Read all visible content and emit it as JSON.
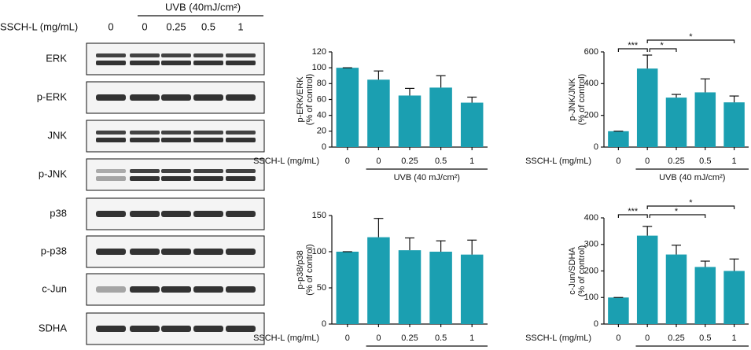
{
  "blot": {
    "header": "UVB (40mJ/cm²)",
    "dose_label": "SSCH-L (mg/mL)",
    "lanes": [
      "0",
      "0",
      "0.25",
      "0.5",
      "1"
    ],
    "rows": [
      "ERK",
      "p-ERK",
      "JNK",
      "p-JNK",
      "p38",
      "p-p38",
      "c-Jun",
      "SDHA"
    ]
  },
  "chart_data": [
    {
      "type": "bar",
      "ylabel": [
        "p-ERK/ERK",
        "(% of control)"
      ],
      "x_row_label": "SSCH-L (mg/mL)",
      "group_label": "UVB (40 mJ/cm²)",
      "categories": [
        "0",
        "0",
        "0.25",
        "0.5",
        "1"
      ],
      "values": [
        100,
        85,
        65,
        75,
        56
      ],
      "errors": [
        0,
        11,
        9,
        15,
        7
      ],
      "color": "#1b9fb1",
      "ylim": [
        0,
        120
      ],
      "yticks": [
        0,
        20,
        40,
        60,
        80,
        100,
        120
      ],
      "sig": []
    },
    {
      "type": "bar",
      "ylabel": [
        "p-JNK/JNK",
        "(% of control)"
      ],
      "x_row_label": "SSCH-L (mg/mL)",
      "group_label": "UVB (40 mJ/cm²)",
      "categories": [
        "0",
        "0",
        "0.25",
        "0.5",
        "1"
      ],
      "values": [
        100,
        495,
        312,
        345,
        282
      ],
      "errors": [
        0,
        85,
        20,
        85,
        40
      ],
      "color": "#1b9fb1",
      "ylim": [
        0,
        600
      ],
      "yticks": [
        0,
        200,
        400,
        600
      ],
      "sig": [
        {
          "pair": [
            0,
            1
          ],
          "label": "***"
        },
        {
          "pair": [
            1,
            2
          ],
          "label": "*"
        },
        {
          "pair": [
            1,
            4
          ],
          "label": "*"
        }
      ]
    },
    {
      "type": "bar",
      "ylabel": [
        "p-p38/p38",
        "(% of control)"
      ],
      "x_row_label": "SSCH-L (mg/mL)",
      "group_label": "UVB (40 mJ/cm²)",
      "categories": [
        "0",
        "0",
        "0.25",
        "0.5",
        "1"
      ],
      "values": [
        100,
        120,
        102,
        100,
        96
      ],
      "errors": [
        0,
        26,
        17,
        15,
        20
      ],
      "color": "#1b9fb1",
      "ylim": [
        0,
        150
      ],
      "yticks": [
        0,
        50,
        100,
        150
      ],
      "sig": []
    },
    {
      "type": "bar",
      "ylabel": [
        "c-Jun/SDHA",
        "(% of control)"
      ],
      "x_row_label": "SSCH-L (mg/mL)",
      "group_label": "UVB (40 mJ/cm²)",
      "categories": [
        "0",
        "0",
        "0.25",
        "0.5",
        "1"
      ],
      "values": [
        100,
        333,
        262,
        215,
        200
      ],
      "errors": [
        0,
        35,
        35,
        22,
        45
      ],
      "color": "#1b9fb1",
      "ylim": [
        0,
        400
      ],
      "yticks": [
        0,
        100,
        200,
        300,
        400
      ],
      "sig": [
        {
          "pair": [
            0,
            1
          ],
          "label": "***"
        },
        {
          "pair": [
            1,
            3
          ],
          "label": "*"
        },
        {
          "pair": [
            1,
            4
          ],
          "label": "*"
        }
      ]
    }
  ]
}
